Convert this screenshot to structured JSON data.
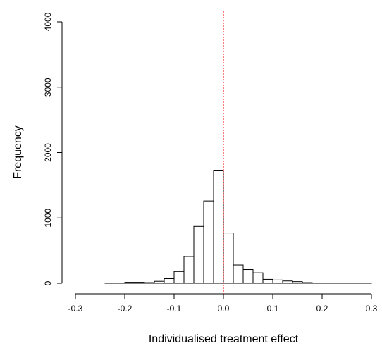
{
  "chart_data": {
    "type": "histogram",
    "x_label": "Individualised treatment effect",
    "y_label": "Frequency",
    "bins": [
      -0.24,
      -0.22,
      -0.2,
      -0.18,
      -0.16,
      -0.14,
      -0.12,
      -0.1,
      -0.08,
      -0.06,
      -0.04,
      -0.02,
      0,
      0.02,
      0.04,
      0.06,
      0.08,
      0.1,
      0.12,
      0.14,
      0.16,
      0.18,
      0.2,
      0.22,
      0.24,
      0.26,
      0.28,
      0.3
    ],
    "values": [
      5,
      5,
      15,
      15,
      10,
      30,
      70,
      180,
      410,
      870,
      1260,
      1730,
      770,
      280,
      210,
      160,
      60,
      50,
      35,
      25,
      10,
      3,
      2,
      1,
      1,
      1,
      1
    ],
    "color": "#ffffff",
    "edge_color": "#000000",
    "xlim": [
      -0.3,
      0.3
    ],
    "xticks": [
      -0.3,
      -0.2,
      -0.1,
      {
        "value": 0,
        "label": "0.0"
      },
      0.1,
      0.2,
      0.3
    ],
    "ylim": [
      0,
      4000
    ],
    "yticks": [
      0,
      1000,
      2000,
      3000,
      4000
    ],
    "reference_line": {
      "x": 0,
      "color": "#ff0000"
    }
  }
}
